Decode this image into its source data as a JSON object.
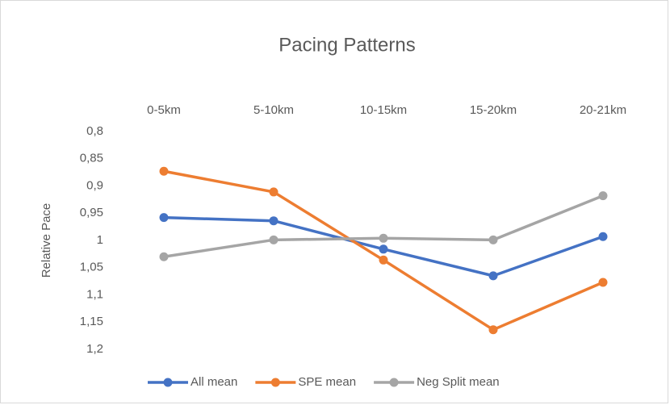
{
  "chart_data": {
    "type": "line",
    "title": "Pacing Patterns",
    "ylabel": "Relative Pace",
    "categories": [
      "0-5km",
      "5-10km",
      "10-15km",
      "15-20km",
      "20-21km"
    ],
    "series": [
      {
        "name": "All mean",
        "color": "#4472c4",
        "values": [
          0.958,
          0.964,
          1.016,
          1.065,
          0.993
        ]
      },
      {
        "name": "SPE mean",
        "color": "#ed7d31",
        "values": [
          0.873,
          0.911,
          1.036,
          1.164,
          1.077
        ]
      },
      {
        "name": "Neg Split mean",
        "color": "#a5a5a5",
        "values": [
          1.03,
          0.999,
          0.996,
          0.999,
          0.918
        ]
      }
    ],
    "ylim": [
      0.8,
      1.2
    ],
    "yticks": [
      {
        "value": 0.8,
        "label": "0,8"
      },
      {
        "value": 0.85,
        "label": "0,85"
      },
      {
        "value": 0.9,
        "label": "0,9"
      },
      {
        "value": 0.95,
        "label": "0,95"
      },
      1,
      {
        "value": 1.05,
        "label": "1,05"
      },
      {
        "value": 1.1,
        "label": "1,1"
      },
      {
        "value": 1.15,
        "label": "1,15"
      },
      {
        "value": 1.2,
        "label": "1,2"
      }
    ],
    "y_inverted": true,
    "x_axis_position": "top",
    "grid": false,
    "legend": "bottom"
  }
}
